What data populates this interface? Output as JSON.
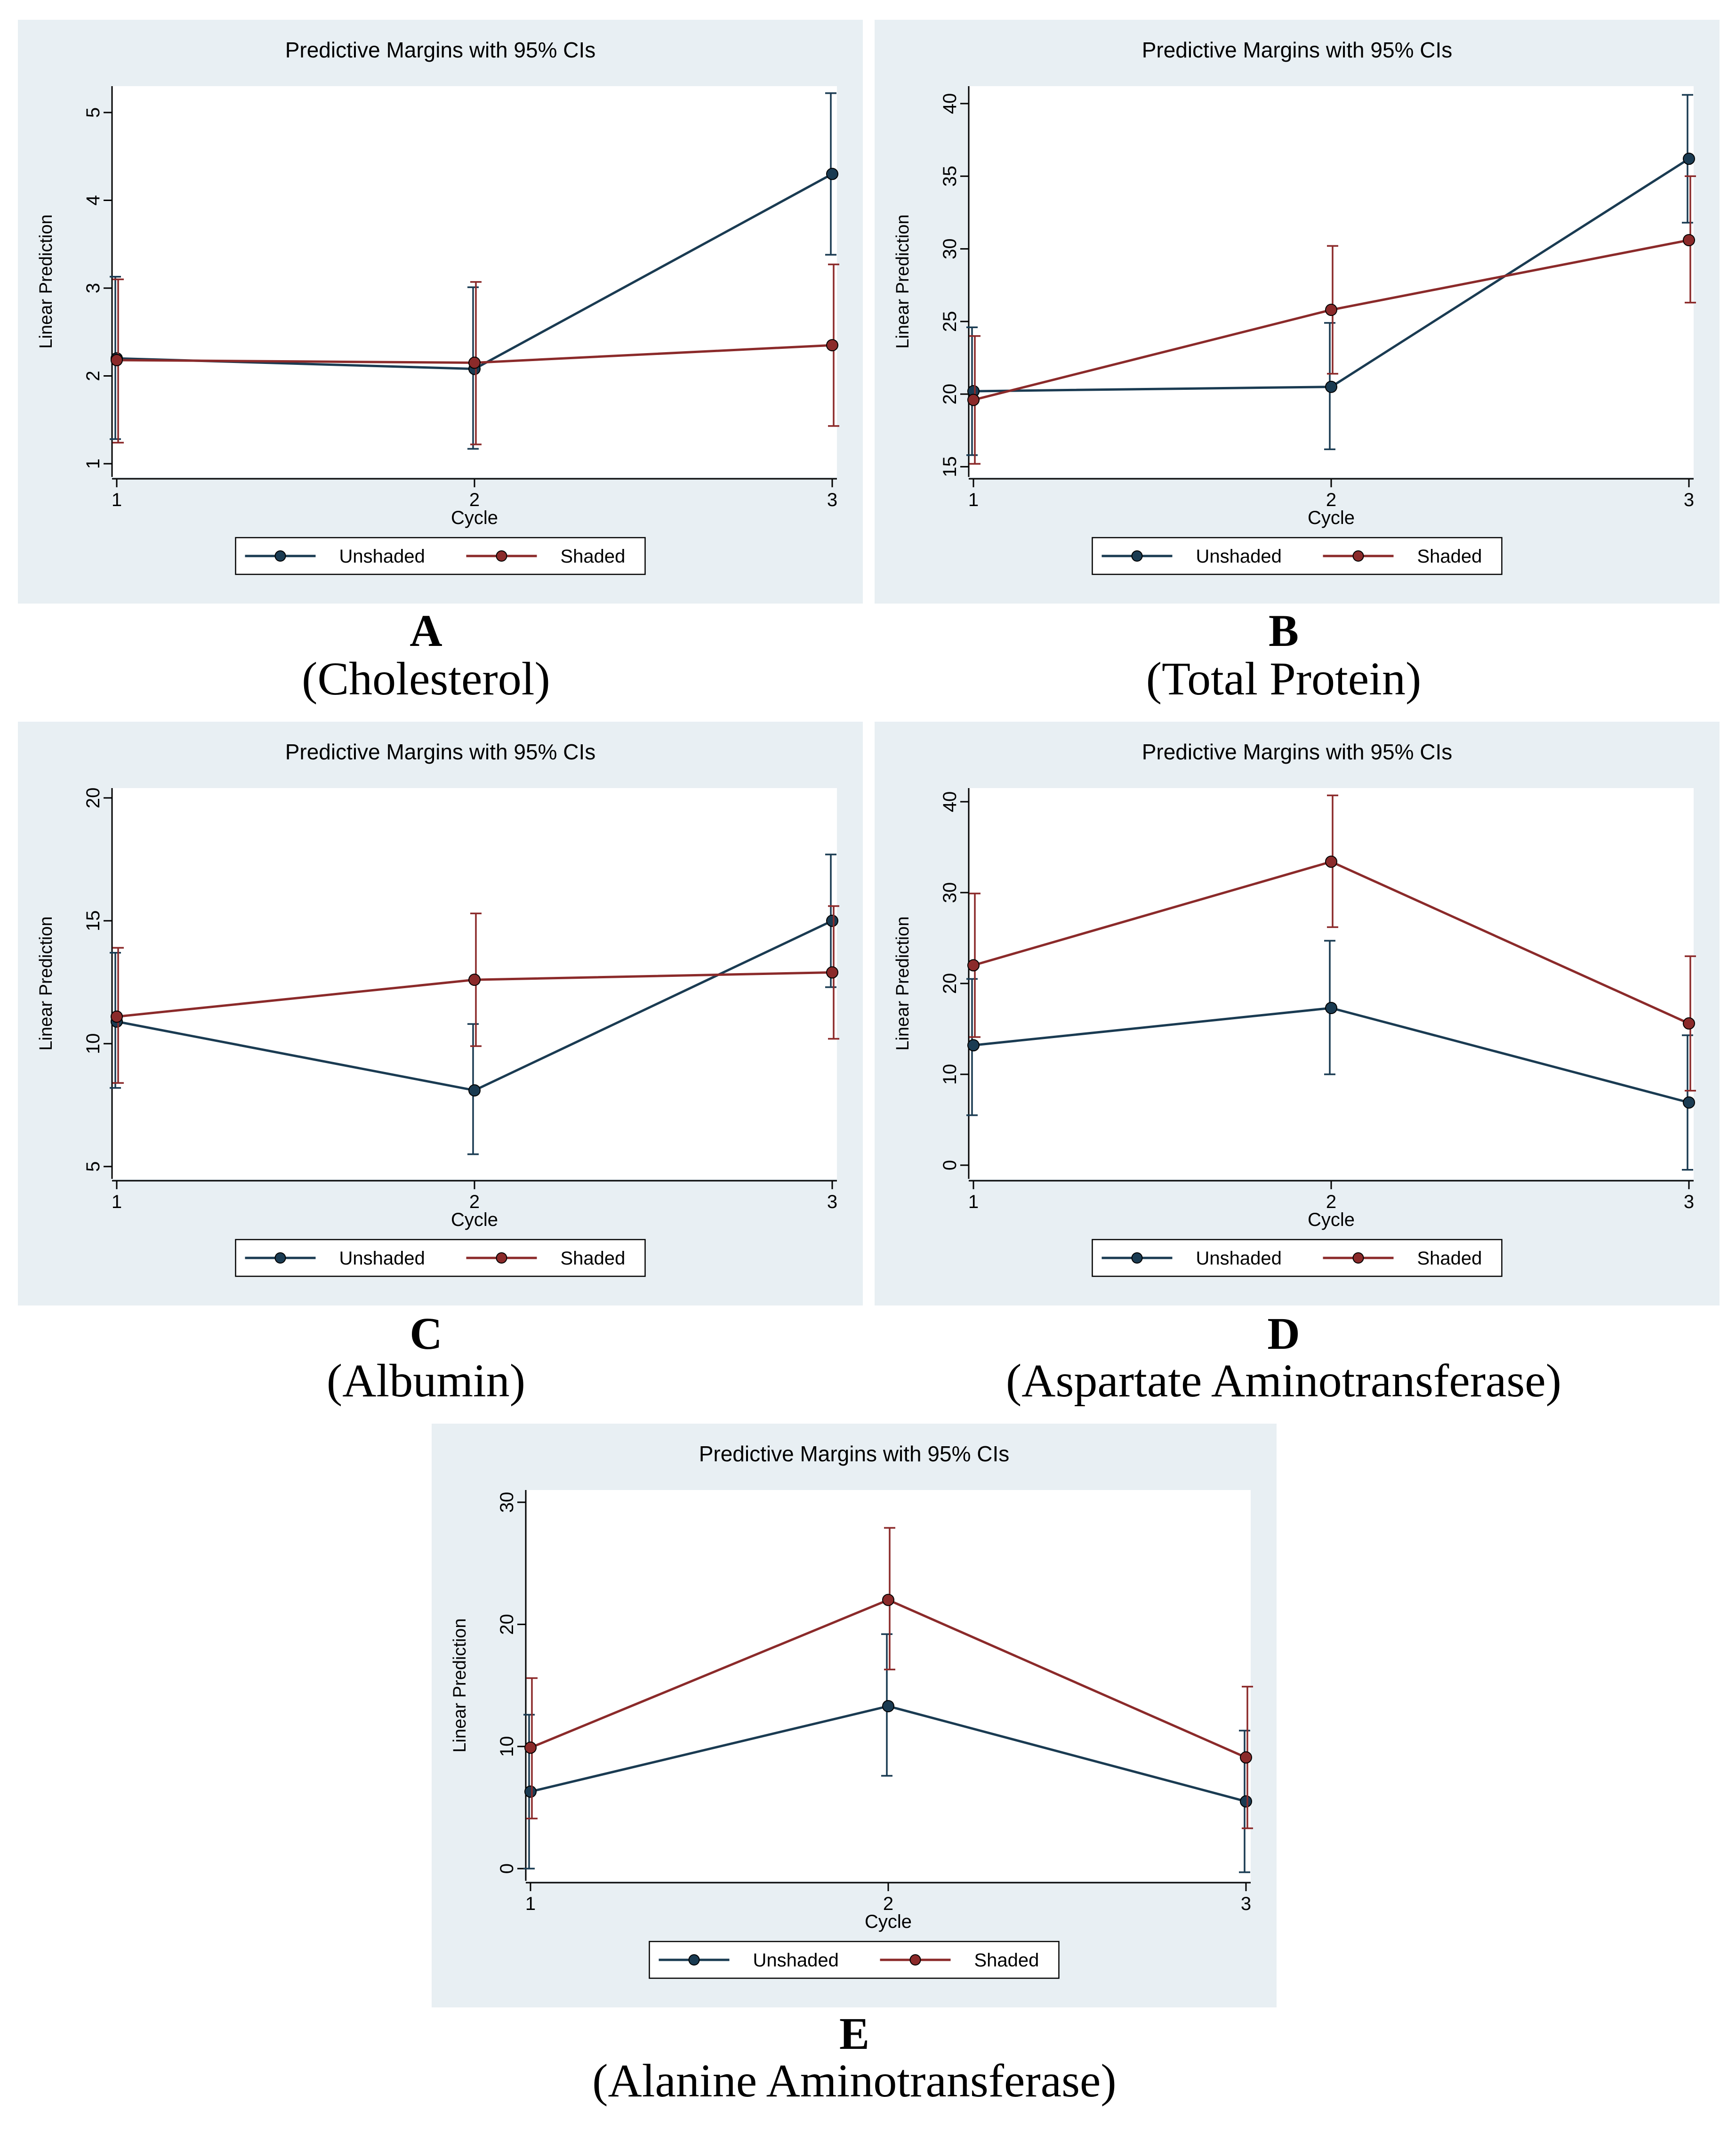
{
  "colors": {
    "panel_bg": "#e8eff3",
    "plot_bg": "#ffffff",
    "unshaded": "#1a3b52",
    "shaded": "#8b2a2a",
    "axis": "#000000"
  },
  "chart_data": [
    {
      "id": "A",
      "type": "line",
      "title": "Predictive Margins with 95% CIs",
      "xlabel": "Cycle",
      "ylabel": "Linear Prediction",
      "categories": [
        "1",
        "2",
        "3"
      ],
      "yticks": [
        1,
        2,
        3,
        4,
        5
      ],
      "ylim": [
        0.85,
        5.3
      ],
      "legend_position": "bottom",
      "series": [
        {
          "name": "Unshaded",
          "color": "#1a3b52",
          "values": [
            2.2,
            2.08,
            4.3
          ],
          "lower": [
            1.28,
            1.17,
            3.38
          ],
          "upper": [
            3.13,
            3.01,
            5.22
          ]
        },
        {
          "name": "Shaded",
          "color": "#8b2a2a",
          "values": [
            2.18,
            2.15,
            2.35
          ],
          "lower": [
            1.24,
            1.22,
            1.43
          ],
          "upper": [
            3.1,
            3.07,
            3.27
          ]
        }
      ],
      "caption_letter": "A",
      "caption_name": "(Cholesterol)"
    },
    {
      "id": "B",
      "type": "line",
      "title": "Predictive Margins with 95% CIs",
      "xlabel": "Cycle",
      "ylabel": "Linear Prediction",
      "categories": [
        "1",
        "2",
        "3"
      ],
      "yticks": [
        15,
        20,
        25,
        30,
        35,
        40
      ],
      "ylim": [
        14.3,
        41.2
      ],
      "legend_position": "bottom",
      "series": [
        {
          "name": "Unshaded",
          "color": "#1a3b52",
          "values": [
            20.2,
            20.5,
            36.2
          ],
          "lower": [
            15.8,
            16.2,
            31.8
          ],
          "upper": [
            24.6,
            24.9,
            40.6
          ]
        },
        {
          "name": "Shaded",
          "color": "#8b2a2a",
          "values": [
            19.6,
            25.8,
            30.6
          ],
          "lower": [
            15.2,
            21.4,
            26.3
          ],
          "upper": [
            24.0,
            30.2,
            35.0
          ]
        }
      ],
      "caption_letter": "B",
      "caption_name": "(Total Protein)"
    },
    {
      "id": "C",
      "type": "line",
      "title": "Predictive Margins with 95% CIs",
      "xlabel": "Cycle",
      "ylabel": "Linear Prediction",
      "categories": [
        "1",
        "2",
        "3"
      ],
      "yticks": [
        5,
        10,
        15,
        20
      ],
      "ylim": [
        4.5,
        20.4
      ],
      "legend_position": "bottom",
      "series": [
        {
          "name": "Unshaded",
          "color": "#1a3b52",
          "values": [
            10.9,
            8.1,
            15.0
          ],
          "lower": [
            8.2,
            5.5,
            12.3
          ],
          "upper": [
            13.7,
            10.8,
            17.7
          ]
        },
        {
          "name": "Shaded",
          "color": "#8b2a2a",
          "values": [
            11.1,
            12.6,
            12.9
          ],
          "lower": [
            8.4,
            9.9,
            10.2
          ],
          "upper": [
            13.9,
            15.3,
            15.6
          ]
        }
      ],
      "caption_letter": "C",
      "caption_name": "(Albumin)"
    },
    {
      "id": "D",
      "type": "line",
      "title": "Predictive Margins with 95% CIs",
      "xlabel": "Cycle",
      "ylabel": "Linear Prediction",
      "categories": [
        "1",
        "2",
        "3"
      ],
      "yticks": [
        0,
        10,
        20,
        30,
        40
      ],
      "ylim": [
        -1.5,
        41.5
      ],
      "legend_position": "bottom",
      "series": [
        {
          "name": "Unshaded",
          "color": "#1a3b52",
          "values": [
            13.2,
            17.3,
            6.9
          ],
          "lower": [
            5.5,
            10.0,
            -0.5
          ],
          "upper": [
            20.5,
            24.7,
            14.3
          ]
        },
        {
          "name": "Shaded",
          "color": "#8b2a2a",
          "values": [
            22.0,
            33.4,
            15.6
          ],
          "lower": [
            14.1,
            26.2,
            8.2
          ],
          "upper": [
            29.9,
            40.7,
            23.0
          ]
        }
      ],
      "caption_letter": "D",
      "caption_name": "(Aspartate Aminotransferase)"
    },
    {
      "id": "E",
      "type": "line",
      "title": "Predictive Margins with 95% CIs",
      "xlabel": "Cycle",
      "ylabel": "Linear Prediction",
      "categories": [
        "1",
        "2",
        "3"
      ],
      "yticks": [
        0,
        10,
        20,
        30
      ],
      "ylim": [
        -1.0,
        31.0
      ],
      "legend_position": "bottom",
      "series": [
        {
          "name": "Unshaded",
          "color": "#1a3b52",
          "values": [
            6.3,
            13.3,
            5.5
          ],
          "lower": [
            0.0,
            7.6,
            -0.3
          ],
          "upper": [
            12.6,
            19.2,
            11.3
          ]
        },
        {
          "name": "Shaded",
          "color": "#8b2a2a",
          "values": [
            9.9,
            22.0,
            9.1
          ],
          "lower": [
            4.1,
            16.3,
            3.3
          ],
          "upper": [
            15.6,
            27.9,
            14.9
          ]
        }
      ],
      "caption_letter": "E",
      "caption_name": "(Alanine Aminotransferase)"
    }
  ]
}
